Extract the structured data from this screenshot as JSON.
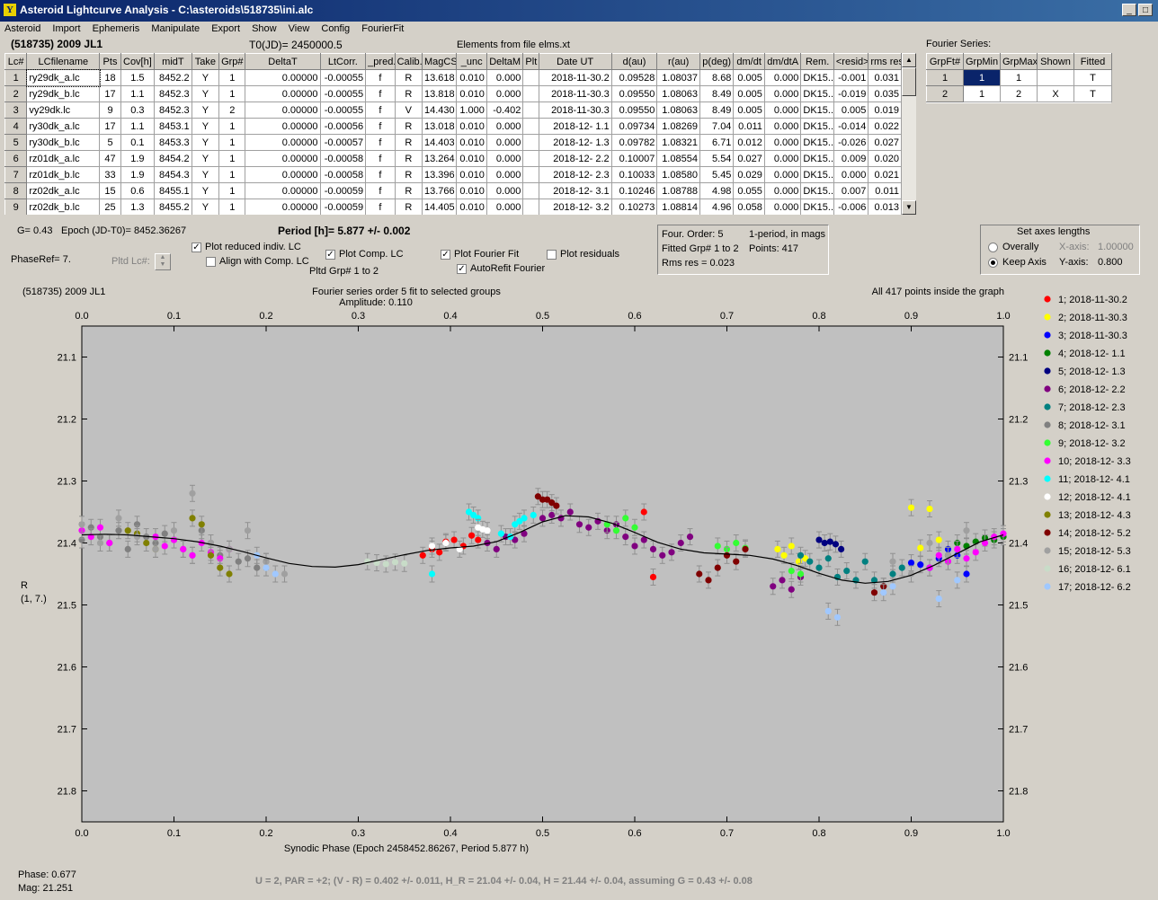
{
  "window": {
    "title": "Asteroid Lightcurve Analysis - C:\\asteroids\\518735\\ini.alc",
    "icon": "app-icon",
    "controls": [
      "_",
      "□",
      "×"
    ]
  },
  "menu": [
    "Asteroid",
    "Import",
    "Ephemeris",
    "Manipulate",
    "Export",
    "Show",
    "View",
    "Config",
    "FourierFit"
  ],
  "header": {
    "object": "(518735) 2009 JL1",
    "t0": "T0(JD)= 2450000.5",
    "elements": "Elements from file elms.xt",
    "fourier_label": "Fourier Series:"
  },
  "lc_table": {
    "columns": [
      "Lc#",
      "LCfilename",
      "Pts",
      "Cov[h]",
      "midT",
      "Take",
      "Grp#",
      "DeltaT",
      "LtCorr.",
      "_pred.",
      "Calib.",
      "MagCS",
      "_unc",
      "DeltaM",
      "Plt",
      "Date UT",
      "d(au)",
      "r(au)",
      "p(deg)",
      "dm/dt",
      "dm/dtA",
      "Rem.",
      "<resid>",
      "rms res"
    ],
    "rows": [
      [
        "1",
        "ry29dk_a.lc",
        "18",
        "1.5",
        "8452.2",
        "Y",
        "1",
        "0.00000",
        "-0.00055",
        "f",
        "R",
        "13.618",
        "0.010",
        "0.000",
        "",
        "2018-11-30.2",
        "0.09528",
        "1.08037",
        "8.68",
        "0.005",
        "0.000",
        "DK15...",
        "-0.001",
        "0.031"
      ],
      [
        "2",
        "ry29dk_b.lc",
        "17",
        "1.1",
        "8452.3",
        "Y",
        "1",
        "0.00000",
        "-0.00055",
        "f",
        "R",
        "13.818",
        "0.010",
        "0.000",
        "",
        "2018-11-30.3",
        "0.09550",
        "1.08063",
        "8.49",
        "0.005",
        "0.000",
        "DK15...",
        "-0.019",
        "0.035"
      ],
      [
        "3",
        "vy29dk.lc",
        "9",
        "0.3",
        "8452.3",
        "Y",
        "2",
        "0.00000",
        "-0.00055",
        "f",
        "V",
        "14.430",
        "1.000",
        "-0.402",
        "",
        "2018-11-30.3",
        "0.09550",
        "1.08063",
        "8.49",
        "0.005",
        "0.000",
        "DK15...",
        "0.005",
        "0.019"
      ],
      [
        "4",
        "ry30dk_a.lc",
        "17",
        "1.1",
        "8453.1",
        "Y",
        "1",
        "0.00000",
        "-0.00056",
        "f",
        "R",
        "13.018",
        "0.010",
        "0.000",
        "",
        "2018-12- 1.1",
        "0.09734",
        "1.08269",
        "7.04",
        "0.011",
        "0.000",
        "DK15...",
        "-0.014",
        "0.022"
      ],
      [
        "5",
        "ry30dk_b.lc",
        "5",
        "0.1",
        "8453.3",
        "Y",
        "1",
        "0.00000",
        "-0.00057",
        "f",
        "R",
        "14.403",
        "0.010",
        "0.000",
        "",
        "2018-12- 1.3",
        "0.09782",
        "1.08321",
        "6.71",
        "0.012",
        "0.000",
        "DK15...",
        "-0.026",
        "0.027"
      ],
      [
        "6",
        "rz01dk_a.lc",
        "47",
        "1.9",
        "8454.2",
        "Y",
        "1",
        "0.00000",
        "-0.00058",
        "f",
        "R",
        "13.264",
        "0.010",
        "0.000",
        "",
        "2018-12- 2.2",
        "0.10007",
        "1.08554",
        "5.54",
        "0.027",
        "0.000",
        "DK15...",
        "0.009",
        "0.020"
      ],
      [
        "7",
        "rz01dk_b.lc",
        "33",
        "1.9",
        "8454.3",
        "Y",
        "1",
        "0.00000",
        "-0.00058",
        "f",
        "R",
        "13.396",
        "0.010",
        "0.000",
        "",
        "2018-12- 2.3",
        "0.10033",
        "1.08580",
        "5.45",
        "0.029",
        "0.000",
        "DK15...",
        "0.000",
        "0.021"
      ],
      [
        "8",
        "rz02dk_a.lc",
        "15",
        "0.6",
        "8455.1",
        "Y",
        "1",
        "0.00000",
        "-0.00059",
        "f",
        "R",
        "13.766",
        "0.010",
        "0.000",
        "",
        "2018-12- 3.1",
        "0.10246",
        "1.08788",
        "4.98",
        "0.055",
        "0.000",
        "DK15...",
        "0.007",
        "0.011"
      ],
      [
        "9",
        "rz02dk_b.lc",
        "25",
        "1.3",
        "8455.2",
        "Y",
        "1",
        "0.00000",
        "-0.00059",
        "f",
        "R",
        "14.405",
        "0.010",
        "0.000",
        "",
        "2018-12- 3.2",
        "0.10273",
        "1.08814",
        "4.96",
        "0.058",
        "0.000",
        "DK15...",
        "-0.006",
        "0.013"
      ]
    ]
  },
  "fourier_table": {
    "columns": [
      "GrpFt#",
      "GrpMin",
      "GrpMax",
      "Shown",
      "Fitted"
    ],
    "rows": [
      [
        "1",
        "1",
        "1",
        "",
        "T"
      ],
      [
        "2",
        "1",
        "2",
        "X",
        "T"
      ]
    ]
  },
  "controls": {
    "g": "G= 0.43",
    "epoch": "Epoch (JD-T0)= 8452.36267",
    "period": "Period [h]= 5.877 +/- 0.002",
    "phaseref": "PhaseRef= 7.",
    "pltd_lc": "Pltd Lc#:",
    "plot_reduced": "Plot reduced indiv. LC",
    "align_comp": "Align with Comp. LC",
    "plot_comp": "Plot Comp. LC",
    "pltd_grp": "Pltd Grp#  1   to   2",
    "plot_fourier": "Plot Fourier Fit",
    "autorefit": "AutoRefit Fourier",
    "plot_residuals": "Plot residuals",
    "info": {
      "order": "Four. Order:  5",
      "period_mode": "1-period, in mags",
      "fitted": "Fitted Grp# 1 to 2",
      "points": "Points: 417",
      "rms": "Rms res      = 0.023"
    },
    "axes": {
      "title": "Set axes lengths",
      "overally": "Overally",
      "keep": "Keep Axis",
      "xaxis_label": "X-axis:",
      "xaxis_value": "1.00000",
      "yaxis_label": "Y-axis:",
      "yaxis_value": "0.800"
    }
  },
  "footer": {
    "phase": "Phase:  0.677",
    "mag": "Mag:    21.251",
    "result": "U = 2, PAR = +2; (V - R) = 0.402 +/- 0.011, H_R = 21.04 +/- 0.04, H = 21.44 +/- 0.04, assuming G = 0.43 +/- 0.08"
  },
  "chart_data": {
    "type": "scatter",
    "title": "Fourier series order 5 fit to selected groups",
    "subtitle": "Amplitude: 0.110",
    "object_label": "(518735) 2009 JL1",
    "note": "All 417 points inside the graph",
    "xlabel": "Synodic Phase (Epoch 2458452.86267, Period 5.877 h)",
    "ylabel": "R\n(1, 7.)",
    "xlim": [
      0.0,
      1.0
    ],
    "ylim": [
      21.05,
      21.85
    ],
    "y_inverted": true,
    "x_ticks": [
      "0.0",
      "0.1",
      "0.2",
      "0.3",
      "0.4",
      "0.5",
      "0.6",
      "0.7",
      "0.8",
      "0.9",
      "1.0"
    ],
    "y_ticks": [
      "21.1",
      "21.2",
      "21.3",
      "21.4",
      "21.5",
      "21.6",
      "21.7",
      "21.8"
    ],
    "fourier_fit": {
      "x": [
        0.0,
        0.025,
        0.05,
        0.075,
        0.1,
        0.125,
        0.15,
        0.175,
        0.2,
        0.225,
        0.25,
        0.275,
        0.3,
        0.325,
        0.35,
        0.375,
        0.4,
        0.425,
        0.45,
        0.475,
        0.5,
        0.525,
        0.55,
        0.575,
        0.6,
        0.625,
        0.65,
        0.675,
        0.7,
        0.725,
        0.75,
        0.775,
        0.8,
        0.825,
        0.85,
        0.875,
        0.9,
        0.925,
        0.95,
        0.975,
        1.0
      ],
      "y": [
        21.387,
        21.386,
        21.387,
        21.39,
        21.393,
        21.398,
        21.405,
        21.414,
        21.424,
        21.433,
        21.438,
        21.439,
        21.435,
        21.427,
        21.419,
        21.412,
        21.408,
        21.405,
        21.398,
        21.383,
        21.366,
        21.356,
        21.358,
        21.368,
        21.383,
        21.399,
        21.41,
        21.416,
        21.418,
        21.42,
        21.426,
        21.436,
        21.449,
        21.46,
        21.465,
        21.462,
        21.452,
        21.436,
        21.417,
        21.398,
        21.387
      ]
    },
    "series": [
      {
        "name": "1; 2018-11-30.2",
        "color": "#ff0000",
        "x": [
          0.37,
          0.38,
          0.388,
          0.395,
          0.404,
          0.414,
          0.423,
          0.43,
          0.61,
          0.62
        ],
        "y": [
          21.42,
          21.41,
          21.415,
          21.398,
          21.395,
          21.405,
          21.388,
          21.395,
          21.35,
          21.455
        ]
      },
      {
        "name": "2; 2018-11-30.3",
        "color": "#ffff00",
        "x": [
          0.755,
          0.762,
          0.77,
          0.778,
          0.785,
          0.9,
          0.91,
          0.92,
          0.93
        ],
        "y": [
          21.41,
          21.42,
          21.405,
          21.43,
          21.425,
          21.343,
          21.408,
          21.345,
          21.395
        ]
      },
      {
        "name": "3; 2018-11-30.3",
        "color": "#0000ff",
        "x": [
          0.9,
          0.91,
          0.92,
          0.93,
          0.94,
          0.95,
          0.96
        ],
        "y": [
          21.432,
          21.435,
          21.44,
          21.425,
          21.41,
          21.42,
          21.45
        ]
      },
      {
        "name": "4; 2018-12- 1.1",
        "color": "#008000",
        "x": [
          0.94,
          0.95,
          0.96,
          0.97,
          0.98,
          0.99,
          1.0
        ],
        "y": [
          21.42,
          21.4,
          21.405,
          21.398,
          21.392,
          21.395,
          21.39
        ]
      },
      {
        "name": "5; 2018-12- 1.3",
        "color": "#000080",
        "x": [
          0.8,
          0.806,
          0.812,
          0.818,
          0.824
        ],
        "y": [
          21.395,
          21.4,
          21.398,
          21.402,
          21.41
        ]
      },
      {
        "name": "6; 2018-12- 2.2",
        "color": "#800080",
        "x": [
          0.44,
          0.45,
          0.46,
          0.47,
          0.48,
          0.5,
          0.51,
          0.52,
          0.53,
          0.54,
          0.55,
          0.56,
          0.57,
          0.58,
          0.59,
          0.6,
          0.61,
          0.62,
          0.63,
          0.64,
          0.65,
          0.66,
          0.75,
          0.76,
          0.77,
          0.78
        ],
        "y": [
          21.4,
          21.41,
          21.39,
          21.395,
          21.385,
          21.36,
          21.355,
          21.36,
          21.35,
          21.37,
          21.375,
          21.365,
          21.38,
          21.37,
          21.39,
          21.405,
          21.395,
          21.41,
          21.42,
          21.415,
          21.4,
          21.39,
          21.47,
          21.46,
          21.475,
          21.455
        ]
      },
      {
        "name": "7; 2018-12- 2.3",
        "color": "#008080",
        "x": [
          0.78,
          0.79,
          0.8,
          0.81,
          0.82,
          0.83,
          0.84,
          0.85,
          0.86,
          0.87,
          0.88,
          0.89
        ],
        "y": [
          21.42,
          21.43,
          21.44,
          21.425,
          21.455,
          21.445,
          21.46,
          21.43,
          21.46,
          21.47,
          21.45,
          21.44
        ]
      },
      {
        "name": "8; 2018-12- 3.1",
        "color": "#808080",
        "x": [
          0.0,
          0.01,
          0.02,
          0.03,
          0.04,
          0.05,
          0.06,
          0.07,
          0.08,
          0.09,
          0.1,
          0.11,
          0.12,
          0.13,
          0.14,
          0.15,
          0.16,
          0.17,
          0.18,
          0.19,
          0.2
        ],
        "y": [
          21.395,
          21.375,
          21.39,
          21.4,
          21.38,
          21.41,
          21.37,
          21.39,
          21.4,
          21.385,
          21.395,
          21.41,
          21.42,
          21.38,
          21.4,
          21.42,
          21.41,
          21.43,
          21.425,
          21.44,
          21.43
        ]
      },
      {
        "name": "9; 2018-12- 3.2",
        "color": "#33ff33",
        "x": [
          0.57,
          0.58,
          0.59,
          0.6,
          0.69,
          0.7,
          0.71,
          0.72,
          0.77,
          0.78
        ],
        "y": [
          21.37,
          21.38,
          21.36,
          21.375,
          21.405,
          21.41,
          21.4,
          21.408,
          21.445,
          21.45
        ]
      },
      {
        "name": "10; 2018-12- 3.3",
        "color": "#ff00ff",
        "x": [
          0.0,
          0.01,
          0.02,
          0.03,
          0.08,
          0.09,
          0.1,
          0.11,
          0.12,
          0.13,
          0.14,
          0.15,
          0.16,
          0.92,
          0.93,
          0.94,
          0.95,
          0.96,
          0.97,
          0.98,
          0.99,
          1.0
        ],
        "y": [
          21.38,
          21.39,
          21.375,
          21.4,
          21.39,
          21.405,
          21.395,
          21.41,
          21.42,
          21.4,
          21.415,
          21.425,
          21.41,
          21.44,
          21.42,
          21.43,
          21.41,
          21.425,
          21.415,
          21.4,
          21.39,
          21.385
        ]
      },
      {
        "name": "11; 2018-12- 4.1",
        "color": "#00ffff",
        "x": [
          0.38,
          0.42,
          0.425,
          0.43,
          0.455,
          0.465,
          0.47,
          0.475,
          0.48,
          0.49
        ],
        "y": [
          21.45,
          21.35,
          21.355,
          21.36,
          21.385,
          21.39,
          21.37,
          21.365,
          21.36,
          21.355
        ]
      },
      {
        "name": "12; 2018-12- 4.1",
        "color": "#ffffff",
        "x": [
          0.38,
          0.395,
          0.41,
          0.43,
          0.435,
          0.44
        ],
        "y": [
          21.405,
          21.4,
          21.41,
          21.375,
          21.378,
          21.38
        ]
      },
      {
        "name": "13; 2018-12- 4.3",
        "color": "#808000",
        "x": [
          0.05,
          0.06,
          0.07,
          0.08,
          0.12,
          0.13,
          0.14,
          0.15,
          0.16
        ],
        "y": [
          21.38,
          21.385,
          21.4,
          21.41,
          21.36,
          21.37,
          21.42,
          21.44,
          21.45
        ]
      },
      {
        "name": "14; 2018-12- 5.2",
        "color": "#800000",
        "x": [
          0.495,
          0.5,
          0.505,
          0.51,
          0.515,
          0.67,
          0.68,
          0.69,
          0.7,
          0.71,
          0.72,
          0.86,
          0.87
        ],
        "y": [
          21.325,
          21.33,
          21.33,
          21.335,
          21.34,
          21.45,
          21.46,
          21.44,
          21.42,
          21.43,
          21.41,
          21.48,
          21.47
        ]
      },
      {
        "name": "15; 2018-12- 5.3",
        "color": "#a0a0a0",
        "x": [
          0.0,
          0.02,
          0.04,
          0.06,
          0.08,
          0.1,
          0.12,
          0.14,
          0.16,
          0.18,
          0.2,
          0.22,
          0.88,
          0.9,
          0.92,
          0.94,
          0.96
        ],
        "y": [
          21.37,
          21.4,
          21.36,
          21.39,
          21.41,
          21.38,
          21.32,
          21.4,
          21.41,
          21.38,
          21.43,
          21.45,
          21.43,
          21.45,
          21.4,
          21.42,
          21.38
        ]
      },
      {
        "name": "16; 2018-12- 6.1",
        "color": "#c8dcc8",
        "x": [
          0.31,
          0.32,
          0.33,
          0.34,
          0.35
        ],
        "y": [
          21.43,
          21.432,
          21.434,
          21.431,
          21.433
        ]
      },
      {
        "name": "17; 2018-12- 6.2",
        "color": "#a0c8ff",
        "x": [
          0.19,
          0.2,
          0.21,
          0.81,
          0.82,
          0.87,
          0.88,
          0.93,
          0.95
        ],
        "y": [
          21.42,
          21.44,
          21.45,
          21.51,
          21.52,
          21.48,
          21.47,
          21.49,
          21.46
        ]
      }
    ]
  }
}
